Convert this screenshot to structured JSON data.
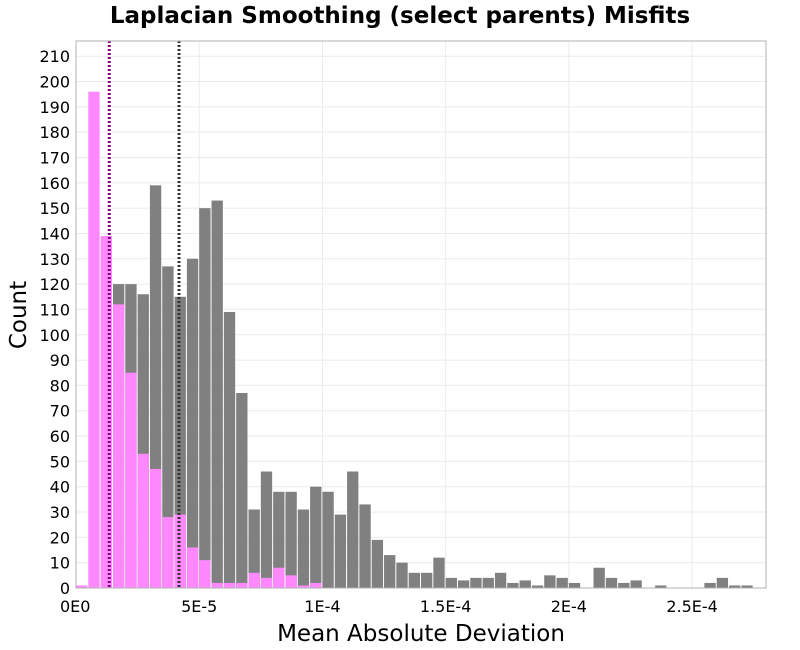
{
  "chart_data": {
    "type": "bar",
    "title": "Laplacian Smoothing (select parents) Misfits",
    "xlabel": "Mean Absolute Deviation",
    "ylabel": "Count",
    "xlim": [
      0,
      0.00028
    ],
    "ylim": [
      0,
      216
    ],
    "bin_width": 5e-06,
    "x_ticks": [
      {
        "value": 0,
        "label": "0E0"
      },
      {
        "value": 5e-05,
        "label": "5E-5"
      },
      {
        "value": 0.0001,
        "label": "1E-4"
      },
      {
        "value": 0.00015,
        "label": "1.5E-4"
      },
      {
        "value": 0.0002,
        "label": "2E-4"
      },
      {
        "value": 0.00025,
        "label": "2.5E-4"
      }
    ],
    "y_ticks": [
      0,
      10,
      20,
      30,
      40,
      50,
      60,
      70,
      80,
      90,
      100,
      110,
      120,
      130,
      140,
      150,
      160,
      170,
      180,
      190,
      200,
      210
    ],
    "series": [
      {
        "name": "gray",
        "color": "#808080",
        "values": [
          0,
          0,
          0,
          120,
          120,
          116,
          159,
          127,
          115,
          130,
          150,
          153,
          109,
          77,
          31,
          46,
          38,
          38,
          31,
          40,
          38,
          29,
          46,
          33,
          19,
          13,
          10,
          6,
          6,
          12,
          4,
          3,
          4,
          4,
          6,
          2,
          3,
          1,
          5,
          4,
          2,
          0,
          8,
          4,
          2,
          3,
          0,
          1,
          0,
          0,
          0,
          2,
          4,
          1,
          1
        ]
      },
      {
        "name": "pink",
        "color": "#ff88ff",
        "values": [
          1,
          196,
          139,
          112,
          85,
          53,
          47,
          28,
          29,
          16,
          11,
          2,
          2,
          2,
          6,
          4,
          8,
          5,
          1,
          2,
          0,
          0,
          0,
          0,
          0,
          0,
          0,
          0,
          0,
          0,
          0,
          0,
          0,
          0,
          0,
          0,
          0,
          0,
          0,
          0,
          0,
          0,
          0,
          0,
          0,
          0,
          0,
          0,
          0,
          0,
          0,
          0,
          0,
          0,
          0
        ]
      }
    ],
    "reference_lines": [
      {
        "x": 1.35e-05,
        "color": "#800080",
        "style": "dotted"
      },
      {
        "x": 4.18e-05,
        "color": "#333333",
        "style": "dotted"
      }
    ]
  }
}
